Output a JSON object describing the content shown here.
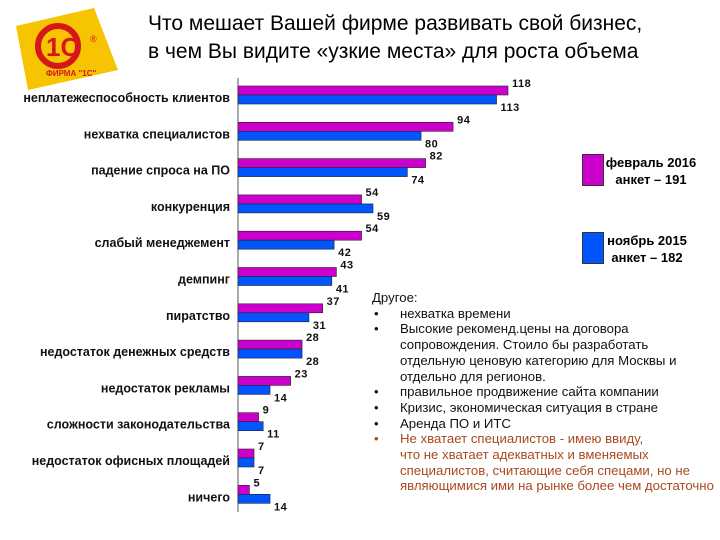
{
  "title": {
    "line1": "Что мешает Вашей фирме развивать свой бизнес,",
    "line2": "в чем Вы видите «узкие места» для роста объема"
  },
  "logo": {
    "mark": "1С",
    "caption": "ФИРМА \"1С\"",
    "reg": "®"
  },
  "legend": [
    {
      "line1": "февраль 2016",
      "line2": "анкет – 191",
      "color": "#cc00cc"
    },
    {
      "line1": "ноябрь 2015",
      "line2": "анкет – 182",
      "color": "#0055ff"
    }
  ],
  "chart_data": {
    "type": "bar",
    "orientation": "horizontal",
    "title": "Что мешает Вашей фирме развивать свой бизнес, в чем Вы видите «узкие места» для роста объема",
    "categories": [
      "неплатежеспособность клиентов",
      "нехватка специалистов",
      "падение спроса на ПО",
      "конкуренция",
      "слабый менеджемент",
      "демпинг",
      "пиратство",
      "недостаток денежных средств",
      "недостаток рекламы",
      "сложности законодательства",
      "недостаток офисных площадей",
      "ничего"
    ],
    "series": [
      {
        "name": "февраль 2016, анкет – 191",
        "color": "#cc00cc",
        "values": [
          118,
          94,
          82,
          54,
          54,
          43,
          37,
          28,
          23,
          9,
          7,
          5
        ]
      },
      {
        "name": "ноябрь 2015, анкет – 182",
        "color": "#0055ff",
        "values": [
          113,
          80,
          74,
          59,
          42,
          41,
          31,
          28,
          14,
          11,
          7,
          14
        ]
      }
    ],
    "xlim": [
      0,
      120
    ],
    "xlabel": "",
    "ylabel": ""
  },
  "notes": {
    "header": "Другое:",
    "items": [
      {
        "text": "нехватка времени",
        "highlight": false
      },
      {
        "text": "Высокие рекоменд.цены на договора",
        "cont": "сопровождения. Стоило бы разработать отдельную ценовую категорию для Москвы и отдельно для регионов.",
        "highlight": false
      },
      {
        "text": "правильное продвижение сайта компании",
        "highlight": false
      },
      {
        "text": "Кризис, экономическая ситуация в стране",
        "highlight": false
      },
      {
        "text": "Аренда ПО и ИТС",
        "highlight": false
      },
      {
        "text": "Не хватает специалистов - имею ввиду,",
        "cont": "что не хватает адекватных и вменяемых специалистов, считающие себя спецами, но не являющимися ими на рынке более чем достаточно",
        "highlight": true
      }
    ]
  }
}
